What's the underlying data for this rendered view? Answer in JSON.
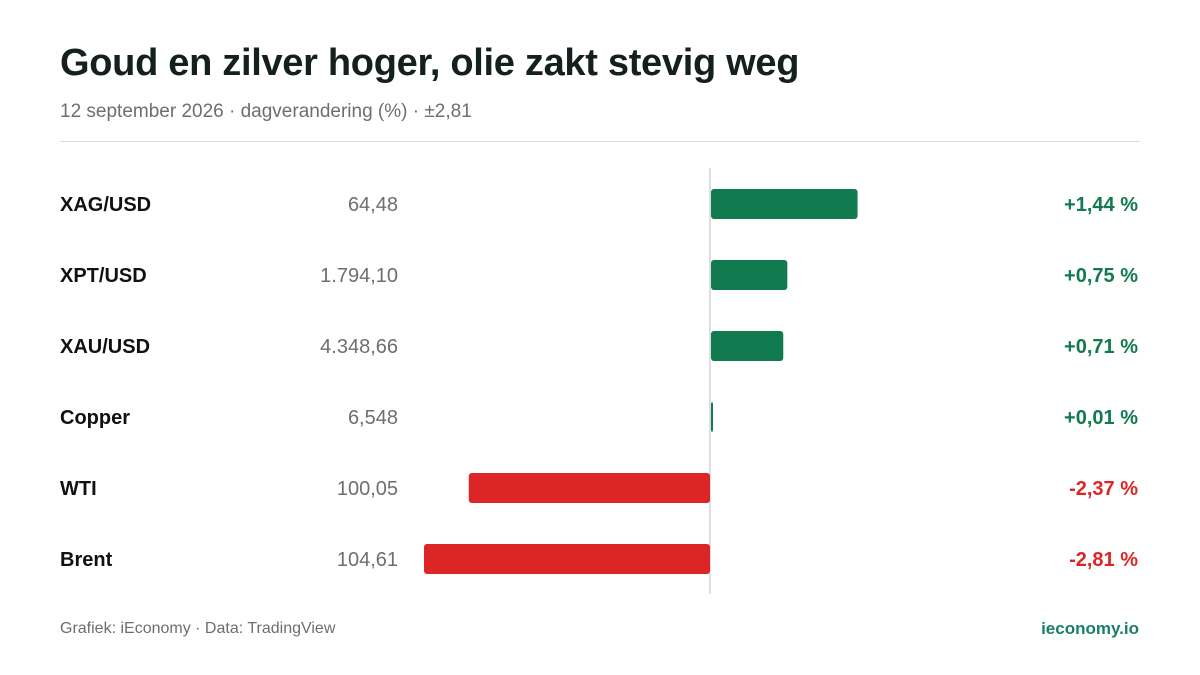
{
  "header": {
    "title": "Goud en zilver hoger, olie zakt stevig weg",
    "subtitle": "12 september 2026 · dagverandering (%) · ±2,81"
  },
  "footer": {
    "source": "Grafiek: iEconomy · Data: TradingView",
    "brand": "ieconomy.io"
  },
  "colors": {
    "positive": "#117a4e",
    "negative": "#dc2626",
    "axis": "#d4d4d4",
    "brand": "#17806a"
  },
  "chart_data": {
    "type": "bar",
    "orientation": "horizontal",
    "categories": [
      "XAG/USD",
      "XPT/USD",
      "XAU/USD",
      "Copper",
      "WTI",
      "Brent"
    ],
    "prices": [
      "64,48",
      "1.794,10",
      "4.348,66",
      "6,548",
      "100,05",
      "104,61"
    ],
    "values": [
      1.44,
      0.75,
      0.71,
      0.01,
      -2.37,
      -2.81
    ],
    "value_labels": [
      "+1,44 %",
      "+0,75 %",
      "+0,71 %",
      "+0,01 %",
      "-2,37 %",
      "-2,81 %"
    ],
    "xlim": [
      -2.81,
      2.81
    ],
    "grid": false
  }
}
